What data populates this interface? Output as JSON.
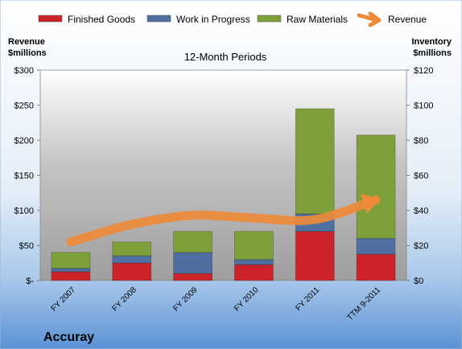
{
  "chart_data": {
    "type": "bar",
    "stacked": true,
    "subtitle": "12-Month Periods",
    "company": "Accuray",
    "categories": [
      "FY 2007",
      "FY 2008",
      "FY 2009",
      "FY 2010",
      "FY 2011",
      "TTM 9-2011"
    ],
    "series": [
      {
        "name": "Finished Goods",
        "axis": "right",
        "color": "#CC2229",
        "values": [
          5,
          10,
          4,
          9,
          28,
          15
        ]
      },
      {
        "name": "Work in Progress",
        "axis": "right",
        "color": "#4F6FA0",
        "values": [
          2,
          4,
          12,
          3,
          10,
          9
        ]
      },
      {
        "name": "Raw Materials",
        "axis": "right",
        "color": "#7EA03A",
        "values": [
          9,
          8,
          12,
          16,
          60,
          59
        ]
      },
      {
        "name": "Revenue",
        "axis": "left",
        "type": "line",
        "color": "#EE8A3A",
        "values": [
          55,
          80,
          93,
          89,
          87,
          115
        ]
      }
    ],
    "left_axis": {
      "label": "Revenue\n$millions",
      "ylim": [
        0,
        300
      ],
      "ticks": [
        "$-",
        "$50",
        "$100",
        "$150",
        "$200",
        "$250",
        "$300"
      ]
    },
    "right_axis": {
      "label": "Inventory\n$millions",
      "ylim": [
        0,
        120
      ],
      "ticks": [
        "$0",
        "$20",
        "$40",
        "$60",
        "$80",
        "$100",
        "$120"
      ]
    },
    "legend_position": "top",
    "grid": false
  }
}
